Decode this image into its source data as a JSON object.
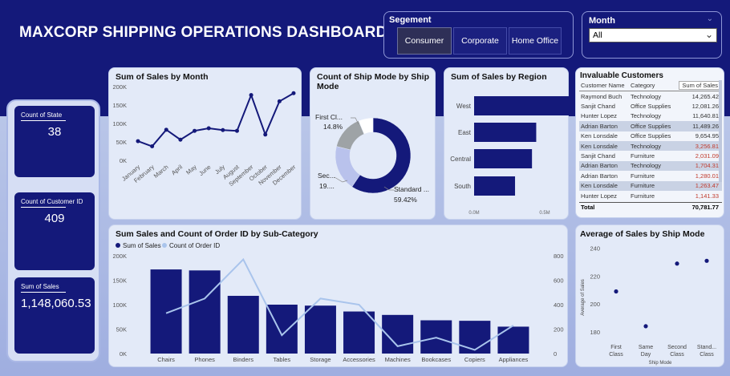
{
  "title": "MAXCORP SHIPPING OPERATIONS DASHBOARD",
  "segment_slicer": {
    "label": "Segement",
    "options": [
      "Consumer",
      "Corporate",
      "Home Office"
    ],
    "selected": "Consumer"
  },
  "month_slicer": {
    "label": "Month",
    "value": "All"
  },
  "kpis": [
    {
      "label": "Count of State",
      "value": "38"
    },
    {
      "label": "Count of Customer ID",
      "value": "409"
    },
    {
      "label": "Sum of Sales",
      "value": "1,148,060.53"
    }
  ],
  "customers_table": {
    "title": "Invaluable Customers",
    "headers": [
      "Customer Name",
      "Category",
      "Sum of Sales"
    ],
    "rows": [
      [
        "Raymond Buch",
        "Technology",
        "14,265.42"
      ],
      [
        "Sanjit Chand",
        "Office Supplies",
        "12,081.26"
      ],
      [
        "Hunter Lopez",
        "Technology",
        "11,640.81"
      ],
      [
        "Adrian Barton",
        "Office Supplies",
        "11,489.26"
      ],
      [
        "Ken Lonsdale",
        "Office Supplies",
        "9,654.95"
      ],
      [
        "Ken Lonsdale",
        "Technology",
        "3,256.81"
      ],
      [
        "Sanjit Chand",
        "Furniture",
        "2,031.09"
      ],
      [
        "Adrian Barton",
        "Technology",
        "1,704.31"
      ],
      [
        "Adrian Barton",
        "Furniture",
        "1,280.01"
      ],
      [
        "Ken Lonsdale",
        "Furniture",
        "1,263.47"
      ],
      [
        "Hunter Lopez",
        "Furniture",
        "1,141.33"
      ]
    ],
    "total_label": "Total",
    "total_value": "70,781.77",
    "value_colors": [
      "#333333",
      "#c0392b"
    ]
  },
  "chart_data": [
    {
      "id": "sales_by_month",
      "type": "line",
      "title": "Sum of Sales by Month",
      "categories": [
        "January",
        "February",
        "March",
        "April",
        "May",
        "June",
        "July",
        "August",
        "September",
        "October",
        "November",
        "December"
      ],
      "values": [
        52000,
        38000,
        83000,
        56000,
        80000,
        87000,
        82000,
        80000,
        177000,
        70000,
        160000,
        182000
      ],
      "ytick_labels": [
        "0K",
        "50K",
        "100K",
        "150K",
        "200K"
      ],
      "ylim": [
        0,
        200000
      ],
      "color": "#14197a"
    },
    {
      "id": "ship_mode_count",
      "type": "pie",
      "title": "Count of Ship Mode by Ship Mode",
      "slices": [
        {
          "label": "Standard ...",
          "value": 59.42,
          "pct_label": "59.42%",
          "color": "#14197a"
        },
        {
          "label": "Sec...",
          "value": 19.5,
          "pct_label": "19....",
          "color": "#b9c2ec"
        },
        {
          "label": "First Cl...",
          "value": 14.8,
          "pct_label": "14.8%",
          "color": "#9ea3a6"
        },
        {
          "label": "",
          "value": 6.28,
          "pct_label": "",
          "color": "#ffffff"
        }
      ]
    },
    {
      "id": "sales_by_region",
      "type": "bar",
      "title": "Sum of Sales by Region",
      "categories": [
        "West",
        "East",
        "Central",
        "South"
      ],
      "values": [
        0.72,
        0.44,
        0.41,
        0.29
      ],
      "unit": "M",
      "xtick_labels": [
        "0.0M",
        "0.5M"
      ],
      "xlim": [
        0,
        0.95
      ],
      "color": "#14197a"
    },
    {
      "id": "subcategory_combo",
      "type": "bar",
      "title": "Sum Sales and Count of Order ID by Sub-Category",
      "categories": [
        "Chairs",
        "Phones",
        "Binders",
        "Tables",
        "Storage",
        "Accessories",
        "Machines",
        "Bookcases",
        "Copiers",
        "Appliances"
      ],
      "series": [
        {
          "name": "Sum of Sales",
          "type": "bar",
          "values": [
            172000,
            170000,
            118000,
            100000,
            98000,
            86000,
            79000,
            68000,
            67000,
            55000
          ],
          "color": "#14197a"
        },
        {
          "name": "Count of Order ID",
          "type": "line",
          "values": [
            330,
            450,
            770,
            150,
            450,
            400,
            60,
            130,
            30,
            230
          ],
          "color": "#a9c4ec"
        }
      ],
      "ytick_labels": [
        "0K",
        "50K",
        "100K",
        "150K",
        "200K"
      ],
      "ylim": [
        0,
        200000
      ],
      "y2tick_labels": [
        "0",
        "200",
        "400",
        "600",
        "800"
      ],
      "y2lim": [
        0,
        800
      ]
    },
    {
      "id": "avg_sales_ship_mode",
      "type": "scatter",
      "title": "Average of Sales by Ship Mode",
      "categories": [
        "First Class",
        "Same Day",
        "Second Class",
        "Stand... Class"
      ],
      "category_lines": [
        [
          "First",
          "Class"
        ],
        [
          "Same",
          "Day"
        ],
        [
          "Second",
          "Class"
        ],
        [
          "Stand...",
          "Class"
        ]
      ],
      "values": [
        209,
        184,
        229,
        231
      ],
      "ytick_labels": [
        "180",
        "200",
        "220",
        "240"
      ],
      "ylim": [
        173,
        245
      ],
      "xlabel": "Ship Mode",
      "ylabel": "Average of Sales",
      "color": "#14197a"
    }
  ]
}
